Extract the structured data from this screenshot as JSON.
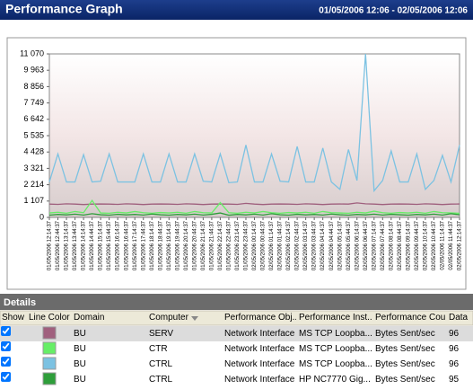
{
  "header": {
    "title": "Performance Graph",
    "range": "01/05/2006 12:06 - 02/05/2006 12:06"
  },
  "chart_data": {
    "type": "line",
    "categories": [
      "01/05/2006 12:14:37",
      "01/05/2006 12:44:37",
      "01/05/2006 13:14:37",
      "01/05/2006 13:44:37",
      "01/05/2006 14:14:37",
      "01/05/2006 14:44:37",
      "01/05/2006 15:14:37",
      "01/05/2006 15:44:37",
      "01/05/2006 16:14:37",
      "01/05/2006 16:44:37",
      "01/05/2006 17:14:37",
      "01/05/2006 17:44:37",
      "01/05/2006 18:14:37",
      "01/05/2006 18:44:37",
      "01/05/2006 19:14:37",
      "01/05/2006 19:44:37",
      "01/05/2006 20:14:37",
      "01/05/2006 20:44:37",
      "01/05/2006 21:14:37",
      "01/05/2006 21:44:37",
      "01/05/2006 22:14:37",
      "01/05/2006 22:44:37",
      "01/05/2006 23:14:37",
      "01/05/2006 23:44:37",
      "02/05/2006 00:14:37",
      "02/05/2006 00:44:37",
      "02/05/2006 01:14:37",
      "02/05/2006 01:44:37",
      "02/05/2006 02:14:37",
      "02/05/2006 02:44:37",
      "02/05/2006 03:14:37",
      "02/05/2006 03:44:37",
      "02/05/2006 04:14:37",
      "02/05/2006 04:44:37",
      "02/05/2006 05:14:37",
      "02/05/2006 05:44:37",
      "02/05/2006 06:14:37",
      "02/05/2006 06:44:37",
      "02/05/2006 07:14:37",
      "02/05/2006 07:44:37",
      "02/05/2006 08:14:37",
      "02/05/2006 08:44:37",
      "02/05/2006 09:14:37",
      "02/05/2006 09:44:37",
      "02/05/2006 10:14:37",
      "02/05/2006 10:44:37",
      "02/05/2006 11:14:37",
      "02/05/2006 11:44:37",
      "02/05/2006 12:14:37"
    ],
    "series": [
      {
        "color": "#a0607e",
        "values": [
          900,
          880,
          920,
          900,
          870,
          900,
          910,
          900,
          880,
          920,
          900,
          870,
          900,
          910,
          900,
          880,
          920,
          900,
          870,
          900,
          910,
          900,
          880,
          950,
          900,
          870,
          900,
          910,
          900,
          880,
          920,
          900,
          870,
          900,
          910,
          900,
          980,
          920,
          900,
          870,
          900,
          910,
          900,
          880,
          920,
          900,
          870,
          900,
          910
        ]
      },
      {
        "color": "#66ee66",
        "values": [
          300,
          350,
          280,
          400,
          320,
          1150,
          300,
          280,
          350,
          300,
          400,
          320,
          280,
          330,
          300,
          350,
          280,
          400,
          320,
          300,
          1000,
          320,
          280,
          350,
          300,
          400,
          320,
          280,
          330,
          300,
          350,
          280,
          400,
          320,
          300,
          280,
          350,
          300,
          420,
          320,
          280,
          330,
          300,
          350,
          280,
          400,
          320,
          300,
          280
        ]
      },
      {
        "color": "#7cc2e2",
        "values": [
          2400,
          4300,
          2400,
          2400,
          4250,
          2400,
          2450,
          4300,
          2400,
          2400,
          2400,
          4300,
          2400,
          2400,
          4300,
          2400,
          2400,
          4300,
          2450,
          2400,
          4300,
          2350,
          2400,
          4900,
          2400,
          2400,
          4300,
          2450,
          2400,
          4800,
          2400,
          2400,
          4700,
          2400,
          1900,
          4600,
          2500,
          11070,
          1800,
          2500,
          4500,
          2400,
          2400,
          4300,
          1900,
          2500,
          4200,
          2400,
          4900
        ]
      },
      {
        "color": "#2e9e3a",
        "values": [
          150,
          200,
          170,
          220,
          160,
          250,
          180,
          150,
          210,
          170,
          200,
          160,
          230,
          180,
          150,
          200,
          170,
          220,
          160,
          210,
          300,
          150,
          200,
          170,
          220,
          160,
          250,
          180,
          150,
          210,
          170,
          200,
          160,
          230,
          180,
          150,
          200,
          170,
          220,
          160,
          210,
          180,
          150,
          200,
          170,
          220,
          160,
          250,
          180
        ]
      }
    ],
    "ylim": [
      0,
      11070
    ],
    "yticks": [
      0,
      {
        "value": 1107,
        "label": "1 107"
      },
      {
        "value": 2214,
        "label": "2 214"
      },
      {
        "value": 3321,
        "label": "3 321"
      },
      {
        "value": 4428,
        "label": "4 428"
      },
      {
        "value": 5535,
        "label": "5 535"
      },
      {
        "value": 6642,
        "label": "6 642"
      },
      {
        "value": 7749,
        "label": "7 749"
      },
      {
        "value": 8856,
        "label": "8 856"
      },
      {
        "value": 9963,
        "label": "9 963"
      },
      {
        "value": 11070,
        "label": "11 070"
      }
    ]
  },
  "details": {
    "title": "Details",
    "columns": [
      "Show",
      "Line Color",
      "Domain",
      "Computer",
      "Performance Obj...",
      "Performance Inst...",
      "Performance Cou...",
      "Data I"
    ],
    "rows": [
      [
        "BU",
        "SERV",
        "Network Interface",
        "MS TCP Loopba...",
        "Bytes Sent/sec",
        "96"
      ],
      [
        "BU",
        "CTR",
        "Network Interface",
        "MS TCP Loopba...",
        "Bytes Sent/sec",
        "96"
      ],
      [
        "BU",
        "CTRL",
        "Network Interface",
        "MS TCP Loopba...",
        "Bytes Sent/sec",
        "96"
      ],
      [
        "BU",
        "CTRL",
        "Network Interface",
        "HP NC7770 Gig...",
        "Bytes Sent/sec",
        "95"
      ]
    ]
  }
}
